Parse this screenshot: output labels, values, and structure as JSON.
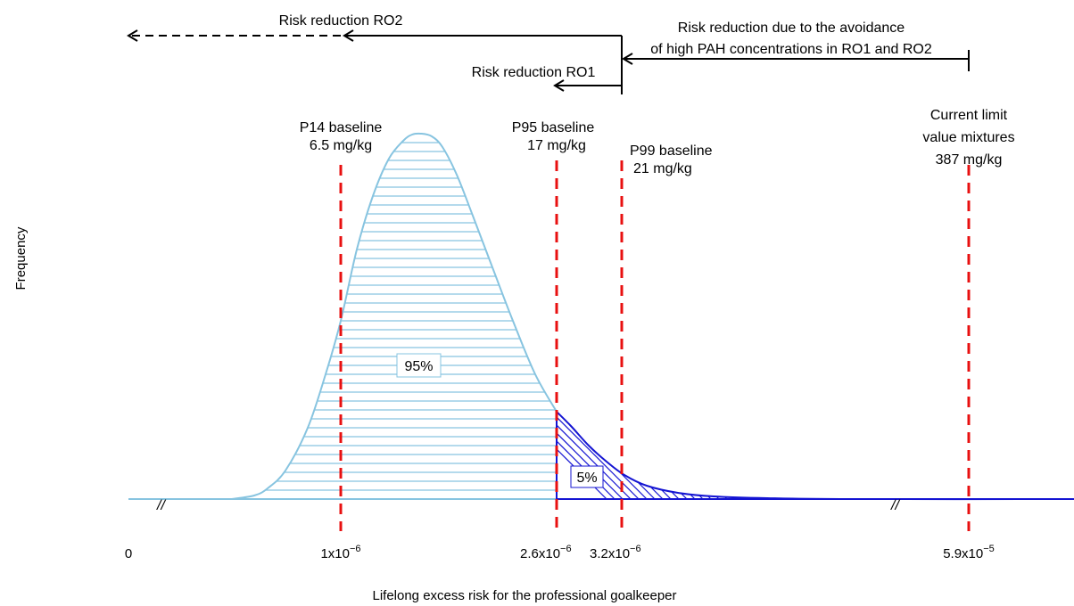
{
  "colors": {
    "light_curve": "#87c4e0",
    "dark_curve": "#1414d2",
    "threshold_lines": "#e81010",
    "arrows": "#000000"
  },
  "axes": {
    "xlabel": "Lifelong excess risk for the professional goalkeeper",
    "ylabel": "Frequency",
    "ticks": [
      {
        "base": "0",
        "exp": ""
      },
      {
        "base": "1x10",
        "exp": "−6"
      },
      {
        "base": "2.6x10",
        "exp": "−6"
      },
      {
        "base": "3.2x10",
        "exp": "−6"
      },
      {
        "base": "5.9x10",
        "exp": "−5"
      }
    ],
    "axis_break_symbol": "//"
  },
  "thresholds": [
    {
      "line1": "P14 baseline",
      "line2": "6.5 mg/kg",
      "line3": ""
    },
    {
      "line1": "P95 baseline",
      "line2": "17 mg/kg",
      "line3": ""
    },
    {
      "line1": "P99 baseline",
      "line2": "21 mg/kg",
      "line3": ""
    },
    {
      "line1": "Current limit",
      "line2": "value mixtures",
      "line3": "387 mg/kg"
    }
  ],
  "area_labels": {
    "main": "95%",
    "tail": "5%"
  },
  "arrows": {
    "ro2": "Risk reduction RO2",
    "ro1": "Risk reduction RO1",
    "avoid_line1": "Risk reduction due to the avoidance",
    "avoid_line2": "of high PAH concentrations in RO1 and RO2"
  }
}
